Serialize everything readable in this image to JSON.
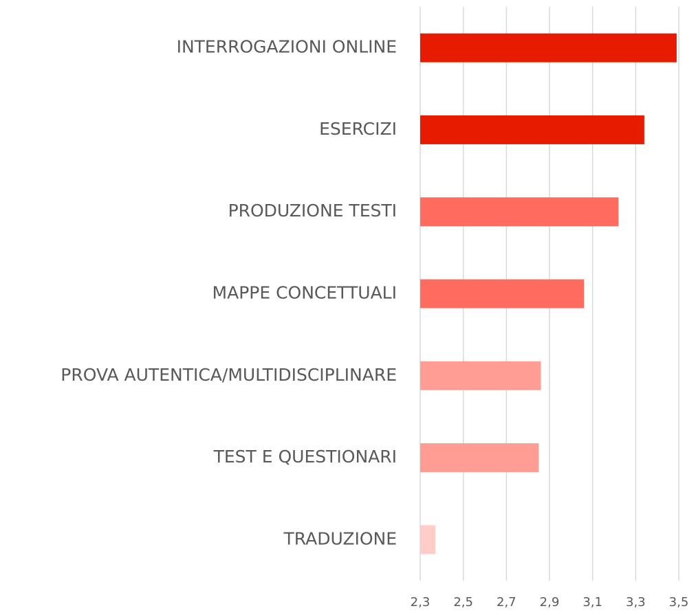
{
  "chart_data": {
    "type": "bar",
    "orientation": "horizontal",
    "categories": [
      "INTERROGAZIONI ONLINE",
      "ESERCIZI",
      "PRODUZIONE TESTI",
      "MAPPE CONCETTUALI",
      "PROVA AUTENTICA/MULTIDISCIPLINARE",
      "TEST E QUESTIONARI",
      "TRADUZIONE"
    ],
    "values": [
      3.49,
      3.34,
      3.22,
      3.06,
      2.86,
      2.85,
      2.37
    ],
    "colors": [
      "#e61b00",
      "#e61b00",
      "#ff6b5e",
      "#ff6b5e",
      "#ff9c94",
      "#ff9c94",
      "#ffccc7"
    ],
    "xlim": [
      2.3,
      3.5
    ],
    "xticks": [
      {
        "value": 2.3,
        "label": "2,3"
      },
      {
        "value": 2.5,
        "label": "2,5"
      },
      {
        "value": 2.7,
        "label": "2,7"
      },
      {
        "value": 2.9,
        "label": "2,9"
      },
      {
        "value": 3.1,
        "label": "3,1"
      },
      {
        "value": 3.3,
        "label": "3,3"
      },
      {
        "value": 3.5,
        "label": "3,5"
      }
    ],
    "grid": true
  }
}
